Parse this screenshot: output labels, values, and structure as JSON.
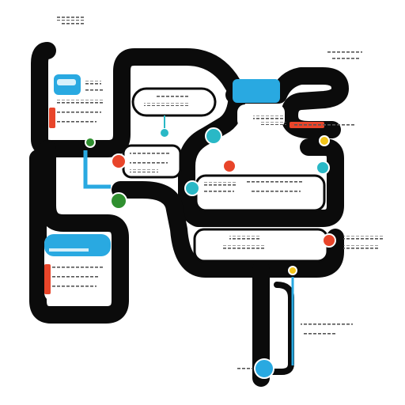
{
  "diagram": {
    "colors": {
      "pipe": "#0b0b0b",
      "panel": "#ffffff",
      "accent_blue": "#29a9e1",
      "accent_red": "#e8452a",
      "accent_green": "#2f8f2f",
      "accent_teal": "#29b8c6",
      "accent_yellow": "#f2c418",
      "text_scribble": "#555555"
    },
    "icons": [
      "pipe-network",
      "top-left-note",
      "top-right-note",
      "tank-card",
      "upper-pill-box",
      "center-wide-box",
      "lower-wide-box",
      "left-tall-box",
      "bottom-pipe",
      "node-markers"
    ]
  }
}
